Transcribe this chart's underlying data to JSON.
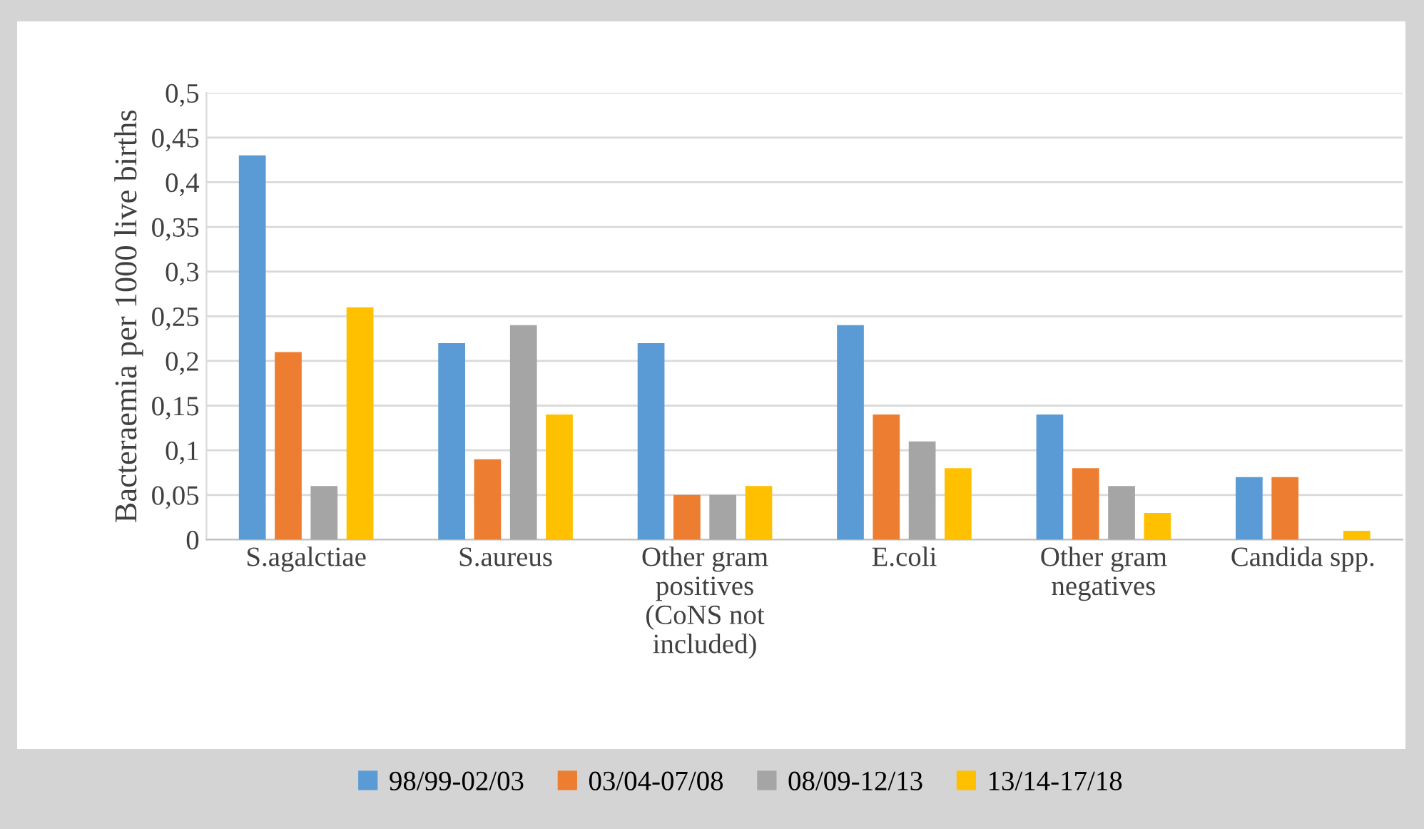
{
  "chart_data": {
    "type": "bar",
    "ylabel": "Bacteraemia per 1000 live births",
    "categories": [
      "S.agalctiae",
      "S.aureus",
      "Other gram\npositives\n(CoNS not\nincluded)",
      "E.coli",
      "Other gram\nnegatives",
      "Candida spp."
    ],
    "series": [
      {
        "name": "98/99-02/03",
        "color": "#5b9bd5",
        "values": [
          0.43,
          0.22,
          0.22,
          0.24,
          0.14,
          0.07
        ]
      },
      {
        "name": "03/04-07/08",
        "color": "#ed7d31",
        "values": [
          0.21,
          0.09,
          0.05,
          0.14,
          0.08,
          0.07
        ]
      },
      {
        "name": "08/09-12/13",
        "color": "#a5a5a5",
        "values": [
          0.06,
          0.24,
          0.05,
          0.11,
          0.06,
          null
        ]
      },
      {
        "name": "13/14-17/18",
        "color": "#ffc000",
        "values": [
          0.26,
          0.14,
          0.06,
          0.08,
          0.03,
          0.01
        ]
      }
    ],
    "ylim": [
      0,
      0.5
    ],
    "yticks": [
      0,
      {
        "value": 0.05,
        "label": "0,05"
      },
      {
        "value": 0.1,
        "label": "0,1"
      },
      {
        "value": 0.15,
        "label": "0,15"
      },
      {
        "value": 0.2,
        "label": "0,2"
      },
      {
        "value": 0.25,
        "label": "0,25"
      },
      {
        "value": 0.3,
        "label": "0,3"
      },
      {
        "value": 0.35,
        "label": "0,35"
      },
      {
        "value": 0.4,
        "label": "0,4"
      },
      {
        "value": 0.45,
        "label": "0,45"
      },
      {
        "value": 0.5,
        "label": "0,5"
      }
    ],
    "grid": "y",
    "legend": "bottom"
  }
}
